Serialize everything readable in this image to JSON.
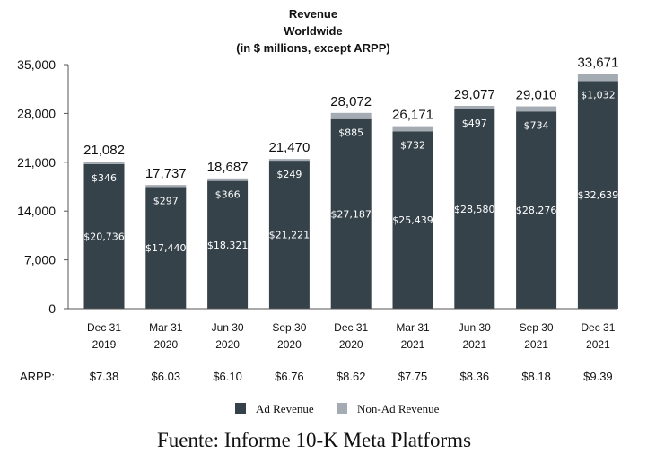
{
  "chart_data": {
    "type": "bar",
    "stacked": true,
    "title_lines": [
      "Revenue",
      "Worldwide",
      "(in $ millions, except ARPP)"
    ],
    "categories": [
      [
        "Dec 31",
        "2019"
      ],
      [
        "Mar 31",
        "2020"
      ],
      [
        "Jun 30",
        "2020"
      ],
      [
        "Sep 30",
        "2020"
      ],
      [
        "Dec 31",
        "2020"
      ],
      [
        "Mar 31",
        "2021"
      ],
      [
        "Jun 30",
        "2021"
      ],
      [
        "Sep 30",
        "2021"
      ],
      [
        "Dec 31",
        "2021"
      ]
    ],
    "series": [
      {
        "name": "Ad Revenue",
        "color": "#36424a",
        "values": [
          20736,
          17440,
          18321,
          21221,
          27187,
          25439,
          28580,
          28276,
          32639
        ],
        "labels": [
          "$20,736",
          "$17,440",
          "$18,321",
          "$21,221",
          "$27,187",
          "$25,439",
          "$28,580",
          "$28,276",
          "$32,639"
        ]
      },
      {
        "name": "Non-Ad Revenue",
        "color": "#a4abb2",
        "values": [
          346,
          297,
          366,
          249,
          885,
          732,
          497,
          734,
          1032
        ],
        "labels": [
          "$346",
          "$297",
          "$366",
          "$249",
          "$885",
          "$732",
          "$497",
          "$734",
          "$1,032"
        ]
      }
    ],
    "totals": [
      "21,082",
      "17,737",
      "18,687",
      "21,470",
      "28,072",
      "26,171",
      "29,077",
      "29,010",
      "33,671"
    ],
    "ylim": [
      0,
      35000
    ],
    "yticks": [
      0,
      7000,
      14000,
      21000,
      28000,
      35000
    ],
    "ytick_labels": [
      "0",
      "7,000",
      "14,000",
      "21,000",
      "28,000",
      "35,000"
    ],
    "arpp_label": "ARPP:",
    "arpp": [
      "$7.38",
      "$6.03",
      "$6.10",
      "$6.76",
      "$8.62",
      "$7.75",
      "$8.36",
      "$8.18",
      "$9.39"
    ],
    "legend_position": "bottom-center",
    "grid": false
  },
  "source_note": "Fuente: Informe 10-K Meta Platforms"
}
